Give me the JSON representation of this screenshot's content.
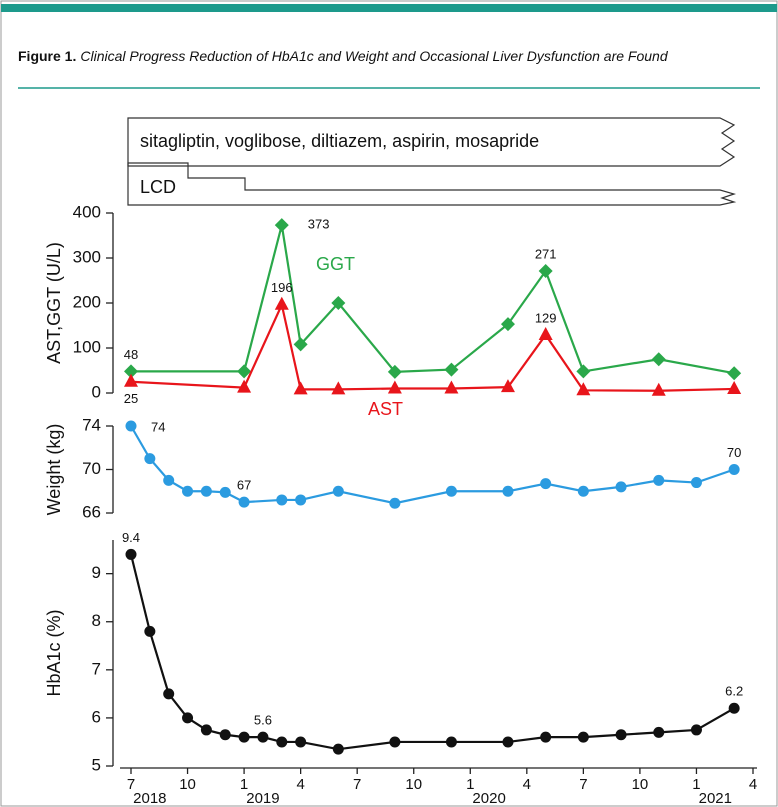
{
  "figure": {
    "label": "Figure 1.",
    "caption": "Clinical Progress Reduction of HbA1c and Weight and Occasional Liver Dysfunction are Found"
  },
  "treatments": [
    "sitagliptin, voglibose, diltiazem, aspirin, mosapride",
    "LCD"
  ],
  "chart_data": [
    {
      "type": "line",
      "ylabel": "AST,GGT (U/L)",
      "xlim": [
        6.8,
        40.1
      ],
      "ylim": [
        0,
        400
      ],
      "yticks": [
        0,
        100,
        200,
        300,
        400
      ],
      "series": [
        {
          "name": "GGT",
          "color": "#2aa84a",
          "marker": "diamond",
          "x": [
            7,
            13,
            15,
            16,
            18,
            21,
            24,
            27,
            29,
            31,
            35,
            39
          ],
          "values": [
            48,
            48,
            373,
            108,
            200,
            47,
            52,
            153,
            271,
            48,
            75,
            44
          ],
          "value_labels": [
            "48",
            null,
            "373",
            null,
            null,
            null,
            null,
            null,
            "271",
            null,
            null,
            null
          ]
        },
        {
          "name": "AST",
          "color": "#e8151b",
          "marker": "triangle",
          "x": [
            7,
            13,
            15,
            16,
            18,
            21,
            24,
            27,
            29,
            31,
            35,
            39
          ],
          "values": [
            25,
            12,
            196,
            8,
            8,
            10,
            10,
            13,
            129,
            6,
            5,
            9
          ],
          "value_labels": [
            "25",
            null,
            "196",
            null,
            null,
            null,
            null,
            null,
            "129",
            null,
            null,
            null
          ]
        }
      ]
    },
    {
      "type": "line",
      "ylabel": "Weight (kg)",
      "xlim": [
        6.8,
        40.1
      ],
      "ylim": [
        66,
        74
      ],
      "yticks": [
        66,
        70,
        74
      ],
      "series": [
        {
          "name": "Weight",
          "color": "#2b9be0",
          "marker": "circle",
          "x": [
            7,
            8,
            9,
            10,
            11,
            12,
            13,
            15,
            16,
            18,
            21,
            24,
            27,
            29,
            31,
            33,
            35,
            37,
            39
          ],
          "values": [
            74,
            71,
            69,
            68,
            68,
            67.9,
            67,
            67.2,
            67.2,
            68,
            66.9,
            68,
            68,
            68.7,
            68,
            68.4,
            69,
            68.8,
            70
          ],
          "value_labels": [
            "74",
            null,
            null,
            null,
            null,
            null,
            "67",
            null,
            null,
            null,
            null,
            null,
            null,
            null,
            null,
            null,
            null,
            null,
            "70"
          ]
        }
      ]
    },
    {
      "type": "line",
      "ylabel": "HbA1c (%)",
      "xlim": [
        6.8,
        40.1
      ],
      "ylim": [
        5,
        9.7
      ],
      "yticks": [
        5,
        6,
        7,
        8,
        9
      ],
      "xticks": [
        {
          "value": 7,
          "label": "7"
        },
        {
          "value": 10,
          "label": "10"
        },
        {
          "value": 13,
          "label": "1"
        },
        {
          "value": 16,
          "label": "4"
        },
        {
          "value": 19,
          "label": "7"
        },
        {
          "value": 22,
          "label": "10"
        },
        {
          "value": 25,
          "label": "1"
        },
        {
          "value": 28,
          "label": "4"
        },
        {
          "value": 31,
          "label": "7"
        },
        {
          "value": 34,
          "label": "10"
        },
        {
          "value": 37,
          "label": "1"
        },
        {
          "value": 40,
          "label": "4"
        }
      ],
      "year_labels": [
        {
          "value": 8,
          "label": "2018"
        },
        {
          "value": 14,
          "label": "2019"
        },
        {
          "value": 26,
          "label": "2020"
        },
        {
          "value": 38,
          "label": "2021"
        }
      ],
      "series": [
        {
          "name": "HbA1c",
          "color": "#111111",
          "marker": "circle",
          "x": [
            7,
            8,
            9,
            10,
            11,
            12,
            13,
            14,
            15,
            16,
            18,
            21,
            24,
            27,
            29,
            31,
            33,
            35,
            37,
            39
          ],
          "values": [
            9.4,
            7.8,
            6.5,
            6.0,
            5.75,
            5.65,
            5.6,
            5.6,
            5.5,
            5.5,
            5.35,
            5.5,
            5.5,
            5.5,
            5.6,
            5.6,
            5.65,
            5.7,
            5.75,
            6.2
          ],
          "value_labels": [
            "9.4",
            null,
            null,
            null,
            null,
            null,
            null,
            "5.6",
            null,
            null,
            null,
            null,
            null,
            null,
            null,
            null,
            null,
            null,
            null,
            "6.2"
          ]
        }
      ]
    }
  ]
}
